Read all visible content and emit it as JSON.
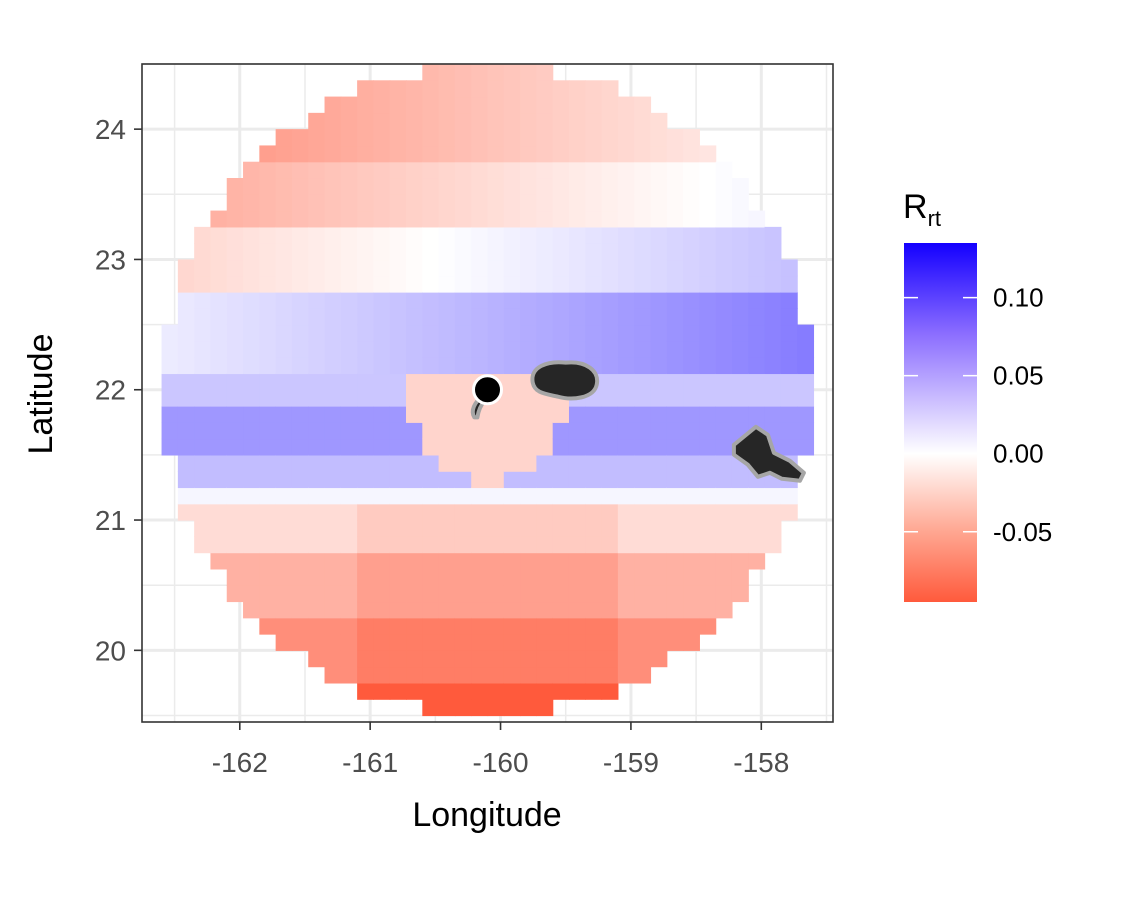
{
  "chart_data": {
    "type": "heatmap",
    "xlabel": "Longitude",
    "ylabel": "Latitude",
    "xlim": [
      -162.75,
      -157.45
    ],
    "ylim": [
      19.45,
      24.5
    ],
    "x_ticks": [
      "-162",
      "-161",
      "-160",
      "-159",
      "-158"
    ],
    "y_ticks": [
      "20",
      "21",
      "22",
      "23",
      "24"
    ],
    "grid": true,
    "legend": {
      "title_main": "R",
      "title_sub": "rt",
      "placement": "right",
      "ticks": [
        "0.10",
        "0.05",
        "0.00",
        "-0.05"
      ],
      "range": [
        -0.095,
        0.135
      ],
      "colors": {
        "low": "#ff5a3c",
        "mid": "#ffffff",
        "high": "#1400ff"
      }
    },
    "grid_cell_size_deg": 0.125,
    "circle_center": [
      -160.1,
      22.0
    ],
    "circle_radius_deg": 2.5,
    "value_bands": [
      {
        "lat": [
          19.5,
          19.75
        ],
        "value": -0.09
      },
      {
        "lat": [
          19.75,
          20.25
        ],
        "value": -0.065
      },
      {
        "lat": [
          20.25,
          20.75
        ],
        "value": -0.045
      },
      {
        "lat": [
          20.75,
          21.1
        ],
        "value": -0.02
      },
      {
        "lat": [
          21.1,
          21.3
        ],
        "value": 0.005
      },
      {
        "lat": [
          21.3,
          21.55
        ],
        "value": 0.035
      },
      {
        "lat": [
          21.55,
          21.9
        ],
        "value": 0.055
      },
      {
        "lat": [
          21.9,
          22.1
        ],
        "value": 0.03
      },
      {
        "lat": [
          22.1,
          22.7
        ],
        "value": 0.04
      },
      {
        "lat": [
          22.7,
          23.3
        ],
        "value": 0.005
      },
      {
        "lat": [
          23.3,
          23.8
        ],
        "value": -0.02
      },
      {
        "lat": [
          23.8,
          24.5
        ],
        "value": -0.035
      }
    ],
    "point": {
      "lon": -160.1,
      "lat": 22.0
    },
    "islands": [
      {
        "name": "Kauai",
        "lon": -159.5,
        "lat": 22.07
      },
      {
        "name": "Oahu",
        "lon": -157.98,
        "lat": 21.47
      },
      {
        "name": "Niihau",
        "lon": -160.17,
        "lat": 21.88
      }
    ]
  }
}
